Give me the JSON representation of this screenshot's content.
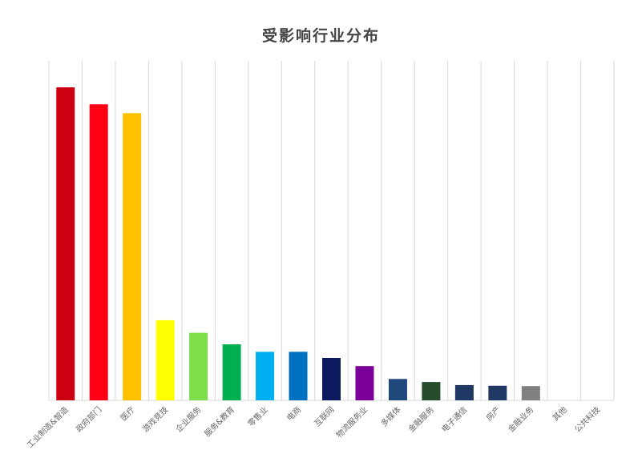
{
  "chart_data": {
    "type": "bar",
    "title": "受影响行业分布",
    "xlabel": "",
    "ylabel": "",
    "ylim": [
      0,
      100
    ],
    "grid": true,
    "categories": [
      "工业制造&智造",
      "政府部门",
      "医疗",
      "游戏竞技",
      "企业服务",
      "服务&教育",
      "零售业",
      "电商",
      "互联网",
      "物流服务业",
      "多媒体",
      "金融服务",
      "电子通信",
      "房产",
      "金融业务",
      "其他",
      "公共科技"
    ],
    "values": [
      92.2,
      87.2,
      84.6,
      23.6,
      19.9,
      16.5,
      14.3,
      14.3,
      12.5,
      10.1,
      6.3,
      5.4,
      4.5,
      4.3,
      4.2,
      0,
      0
    ],
    "colors": [
      "#cc0011",
      "#ff0015",
      "#ffc000",
      "#ffff00",
      "#7ede4a",
      "#00b050",
      "#00b0f0",
      "#0070c0",
      "#0c1a60",
      "#7a0099",
      "#1f497d",
      "#254a2c",
      "#1f3864",
      "#203864",
      "#808080",
      "#cccccc",
      "#cccccc"
    ]
  }
}
